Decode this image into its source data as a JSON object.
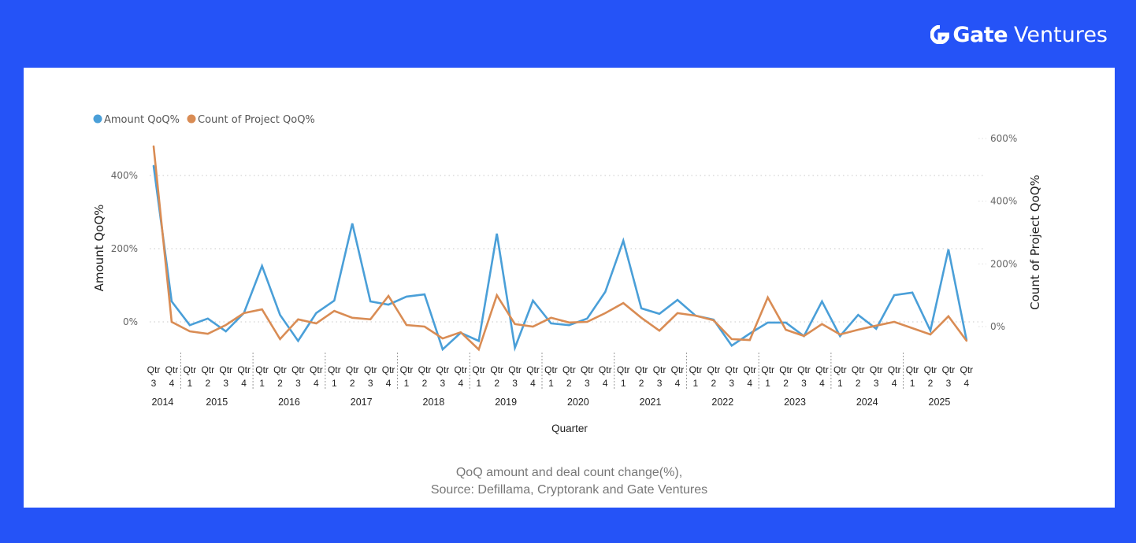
{
  "brand": {
    "name_bold": "Gate",
    "name_light": "Ventures",
    "bg_color": "#2553f7"
  },
  "caption": {
    "line1": "QoQ amount and deal count change(%),",
    "line2": "Source: Defillama, Cryptorank and Gate Ventures"
  },
  "chart_data": {
    "type": "line",
    "title": "",
    "xlabel": "Quarter",
    "ylabel": "Amount QoQ%",
    "y2label": "Count of Project QoQ%",
    "ylim": [
      -100,
      500
    ],
    "y2lim": [
      -100,
      600
    ],
    "yticks": [
      "0%",
      "200%",
      "400%"
    ],
    "y2ticks": [
      "0%",
      "200%",
      "400%",
      "600%"
    ],
    "grid": true,
    "legend_position": "top-left",
    "x_quarter_prefix": "Qtr",
    "years": [
      {
        "year": "2014",
        "quarters": [
          "3",
          "4"
        ]
      },
      {
        "year": "2015",
        "quarters": [
          "1",
          "2",
          "3",
          "4"
        ]
      },
      {
        "year": "2016",
        "quarters": [
          "1",
          "2",
          "3",
          "4"
        ]
      },
      {
        "year": "2017",
        "quarters": [
          "1",
          "2",
          "3",
          "4"
        ]
      },
      {
        "year": "2018",
        "quarters": [
          "1",
          "2",
          "3",
          "4"
        ]
      },
      {
        "year": "2019",
        "quarters": [
          "1",
          "2",
          "3",
          "4"
        ]
      },
      {
        "year": "2020",
        "quarters": [
          "1",
          "2",
          "3",
          "4"
        ]
      },
      {
        "year": "2021",
        "quarters": [
          "1",
          "2",
          "3",
          "4"
        ]
      },
      {
        "year": "2022",
        "quarters": [
          "1",
          "2",
          "3",
          "4"
        ]
      },
      {
        "year": "2023",
        "quarters": [
          "1",
          "2",
          "3",
          "4"
        ]
      },
      {
        "year": "2024",
        "quarters": [
          "1",
          "2",
          "3",
          "4"
        ]
      },
      {
        "year": "2025",
        "quarters": [
          "1",
          "2",
          "3",
          "4"
        ]
      }
    ],
    "series": [
      {
        "name": "Amount QoQ%",
        "axis": "left",
        "color": "#4a9fd8",
        "values": [
          426,
          56,
          -9,
          9,
          -26,
          24,
          153,
          19,
          -52,
          24,
          58,
          269,
          56,
          47,
          69,
          75,
          -75,
          -30,
          -52,
          241,
          -71,
          58,
          -4,
          -9,
          9,
          82,
          222,
          37,
          22,
          60,
          17,
          6,
          -65,
          -32,
          -2,
          -2,
          -39,
          56,
          -39,
          19,
          -19,
          73,
          80,
          -24,
          198,
          -49
        ]
      },
      {
        "name": "Count of Project QoQ%",
        "axis": "right",
        "color": "#d98c54",
        "values": [
          575,
          15,
          -15,
          -23,
          5,
          43,
          55,
          -40,
          23,
          10,
          50,
          28,
          23,
          98,
          5,
          0,
          -38,
          -18,
          -73,
          100,
          8,
          0,
          28,
          13,
          15,
          43,
          75,
          28,
          -13,
          43,
          35,
          20,
          -40,
          -43,
          93,
          -10,
          -30,
          8,
          -25,
          -10,
          3,
          15,
          -5,
          -25,
          33,
          -45
        ]
      }
    ]
  }
}
